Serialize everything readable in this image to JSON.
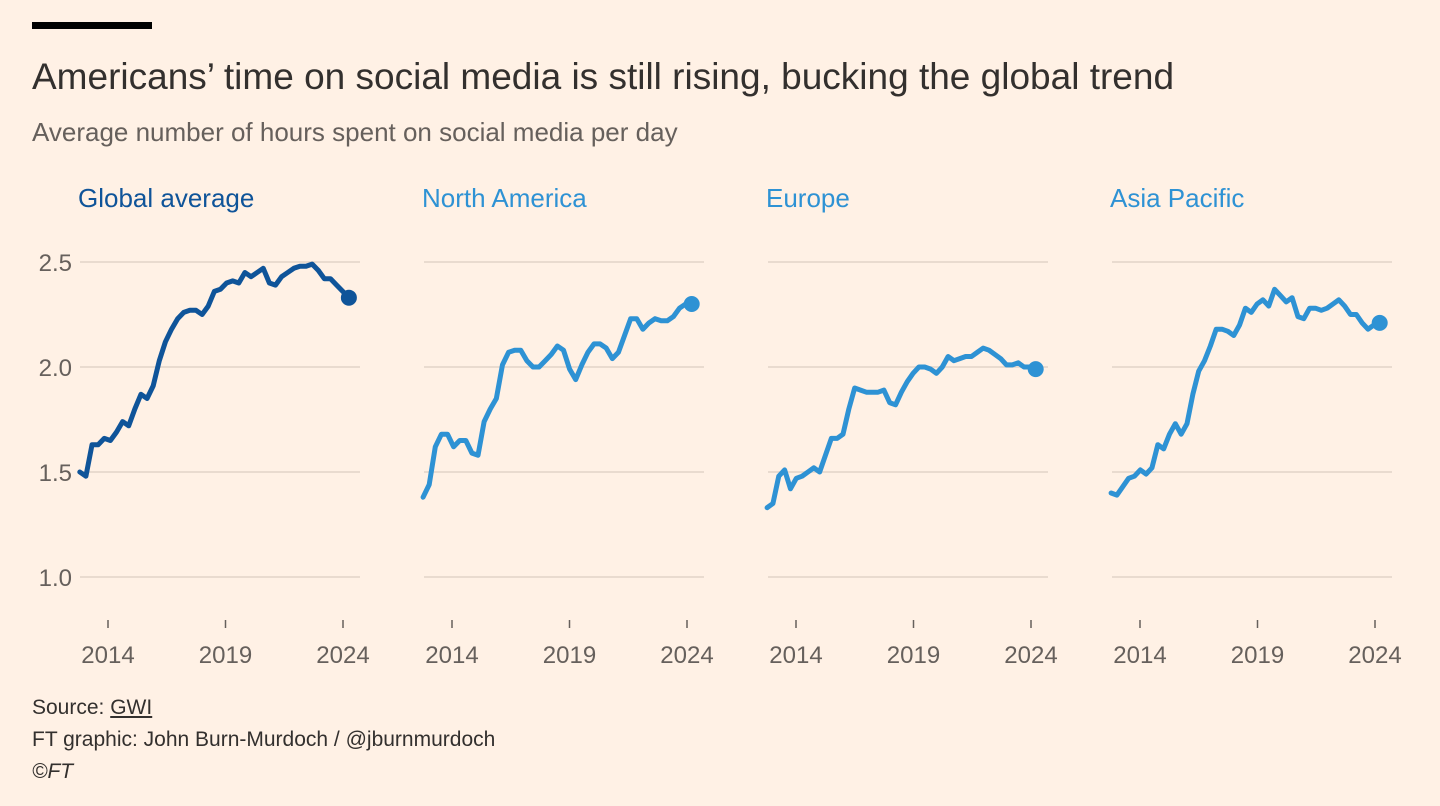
{
  "header": {
    "title": "Americans’ time on social media is still rising, bucking the global trend",
    "subtitle": "Average number of hours spent on social media per day"
  },
  "footer": {
    "source_label": "Source: ",
    "source_link": "GWI",
    "credit": "FT graphic: John Burn-Murdoch / @jburnmurdoch",
    "copyright": "©FT"
  },
  "colors": {
    "background": "#fff1e5",
    "global": "#0f5499",
    "region": "#2e92d4",
    "grid": "#e9dbcf",
    "text": "#66605c"
  },
  "chart_data": {
    "type": "line",
    "layout": "small-multiples",
    "title": "Americans’ time on social media is still rising, bucking the global trend",
    "ylabel": "Average number of hours spent on social media per day",
    "ylim": [
      0.8,
      2.6
    ],
    "yticks": [
      1.0,
      1.5,
      2.0,
      2.5
    ],
    "ytick_labels": [
      "1.0",
      "1.5",
      "2.0",
      "2.5"
    ],
    "xticks": [
      2014,
      2019,
      2024
    ],
    "xtick_labels": [
      "2014",
      "2019",
      "2024"
    ],
    "grid": true,
    "series": [
      {
        "name": "Global average",
        "x_start": 2012.8,
        "x_end": 2024.25,
        "values": [
          1.5,
          1.48,
          1.63,
          1.63,
          1.66,
          1.65,
          1.69,
          1.74,
          1.72,
          1.8,
          1.87,
          1.85,
          1.91,
          2.03,
          2.12,
          2.18,
          2.23,
          2.26,
          2.27,
          2.27,
          2.25,
          2.29,
          2.36,
          2.37,
          2.4,
          2.41,
          2.4,
          2.45,
          2.43,
          2.45,
          2.47,
          2.4,
          2.39,
          2.43,
          2.45,
          2.47,
          2.48,
          2.48,
          2.49,
          2.46,
          2.42,
          2.42,
          2.39,
          2.36,
          2.33
        ]
      },
      {
        "name": "North America",
        "x_start": 2012.77,
        "x_end": 2024.2,
        "values": [
          1.38,
          1.44,
          1.62,
          1.68,
          1.68,
          1.62,
          1.65,
          1.65,
          1.59,
          1.58,
          1.74,
          1.8,
          1.85,
          2.01,
          2.07,
          2.08,
          2.08,
          2.03,
          2.0,
          2.0,
          2.03,
          2.06,
          2.1,
          2.08,
          1.99,
          1.94,
          2.01,
          2.07,
          2.11,
          2.11,
          2.09,
          2.04,
          2.07,
          2.15,
          2.23,
          2.23,
          2.18,
          2.21,
          2.23,
          2.22,
          2.22,
          2.24,
          2.28,
          2.3,
          2.3
        ]
      },
      {
        "name": "Europe",
        "x_start": 2012.77,
        "x_end": 2024.2,
        "values": [
          1.33,
          1.35,
          1.48,
          1.51,
          1.42,
          1.47,
          1.48,
          1.5,
          1.52,
          1.5,
          1.58,
          1.66,
          1.66,
          1.68,
          1.8,
          1.9,
          1.89,
          1.88,
          1.88,
          1.88,
          1.89,
          1.83,
          1.82,
          1.88,
          1.93,
          1.97,
          2.0,
          2.0,
          1.99,
          1.97,
          2.0,
          2.05,
          2.03,
          2.04,
          2.05,
          2.05,
          2.07,
          2.09,
          2.08,
          2.06,
          2.04,
          2.01,
          2.01,
          2.02,
          2.0,
          2.0,
          1.99
        ]
      },
      {
        "name": "Asia Pacific",
        "x_start": 2012.77,
        "x_end": 2024.2,
        "values": [
          1.4,
          1.39,
          1.43,
          1.47,
          1.48,
          1.51,
          1.49,
          1.52,
          1.63,
          1.61,
          1.68,
          1.73,
          1.68,
          1.73,
          1.87,
          1.98,
          2.03,
          2.1,
          2.18,
          2.18,
          2.17,
          2.15,
          2.2,
          2.28,
          2.26,
          2.3,
          2.32,
          2.29,
          2.37,
          2.34,
          2.31,
          2.33,
          2.24,
          2.23,
          2.28,
          2.28,
          2.27,
          2.28,
          2.3,
          2.32,
          2.29,
          2.25,
          2.25,
          2.21,
          2.18,
          2.2,
          2.21
        ]
      }
    ]
  }
}
